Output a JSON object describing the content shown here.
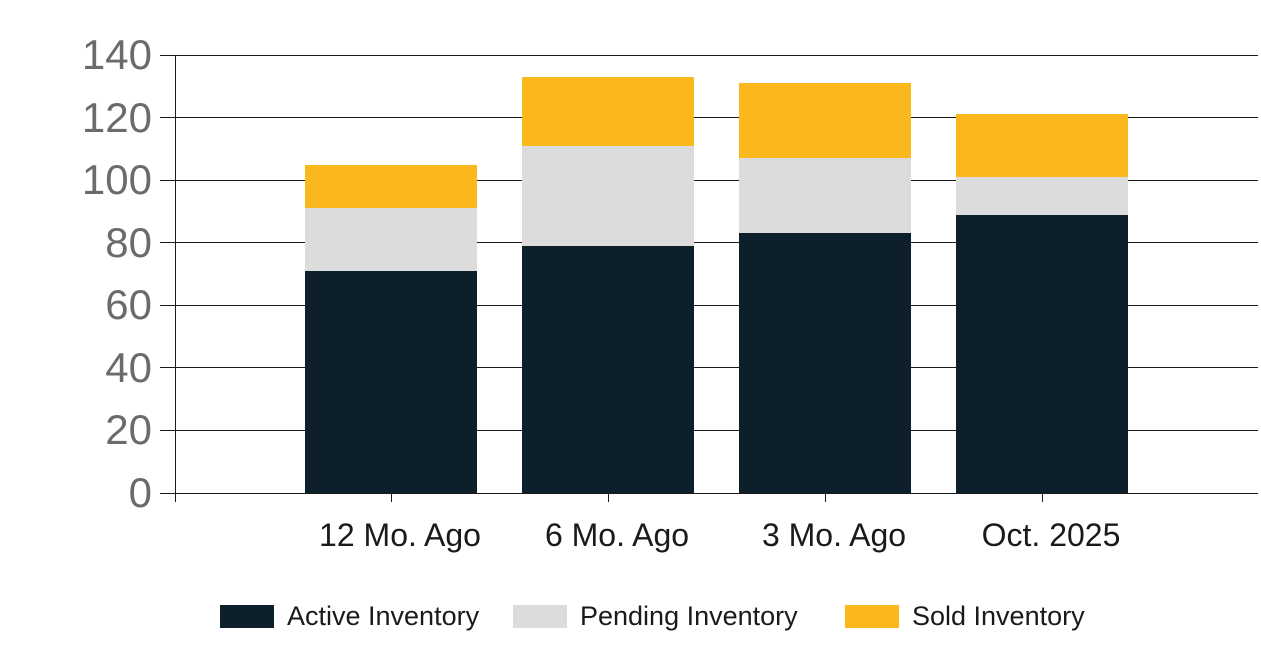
{
  "chart_data": {
    "type": "bar",
    "stacked": true,
    "title": "",
    "xlabel": "",
    "ylabel": "",
    "categories": [
      "12 Mo. Ago",
      "6 Mo. Ago",
      "3 Mo. Ago",
      "Oct. 2025"
    ],
    "series": [
      {
        "name": "Active Inventory",
        "color": "#0D1F2B",
        "values": [
          71,
          79,
          83,
          89
        ]
      },
      {
        "name": "Pending Inventory",
        "color": "#DCDCDC",
        "values": [
          20,
          32,
          24,
          12
        ]
      },
      {
        "name": "Sold Inventory",
        "color": "#FBB81C",
        "values": [
          14,
          22,
          24,
          20
        ]
      }
    ],
    "stack_totals": [
      105,
      133,
      131,
      121
    ],
    "ylim": [
      0,
      140
    ],
    "y_ticks": [
      0,
      20,
      40,
      60,
      80,
      100,
      120,
      140
    ],
    "grid": "horizontal",
    "legend_position": "bottom"
  },
  "colors": {
    "background": "#FFFFFF",
    "grid_line": "#1A1A1A",
    "axis_line": "#1A1A1A",
    "y_tick_label_text": "#6B6B6B",
    "x_tick_label_text": "#1A1A1A",
    "legend_text": "#1A1A1A"
  },
  "legend": {
    "items": [
      {
        "label": "Active Inventory",
        "color": "#0D1F2B"
      },
      {
        "label": "Pending Inventory",
        "color": "#DCDCDC"
      },
      {
        "label": "Sold Inventory",
        "color": "#FBB81C"
      }
    ]
  }
}
